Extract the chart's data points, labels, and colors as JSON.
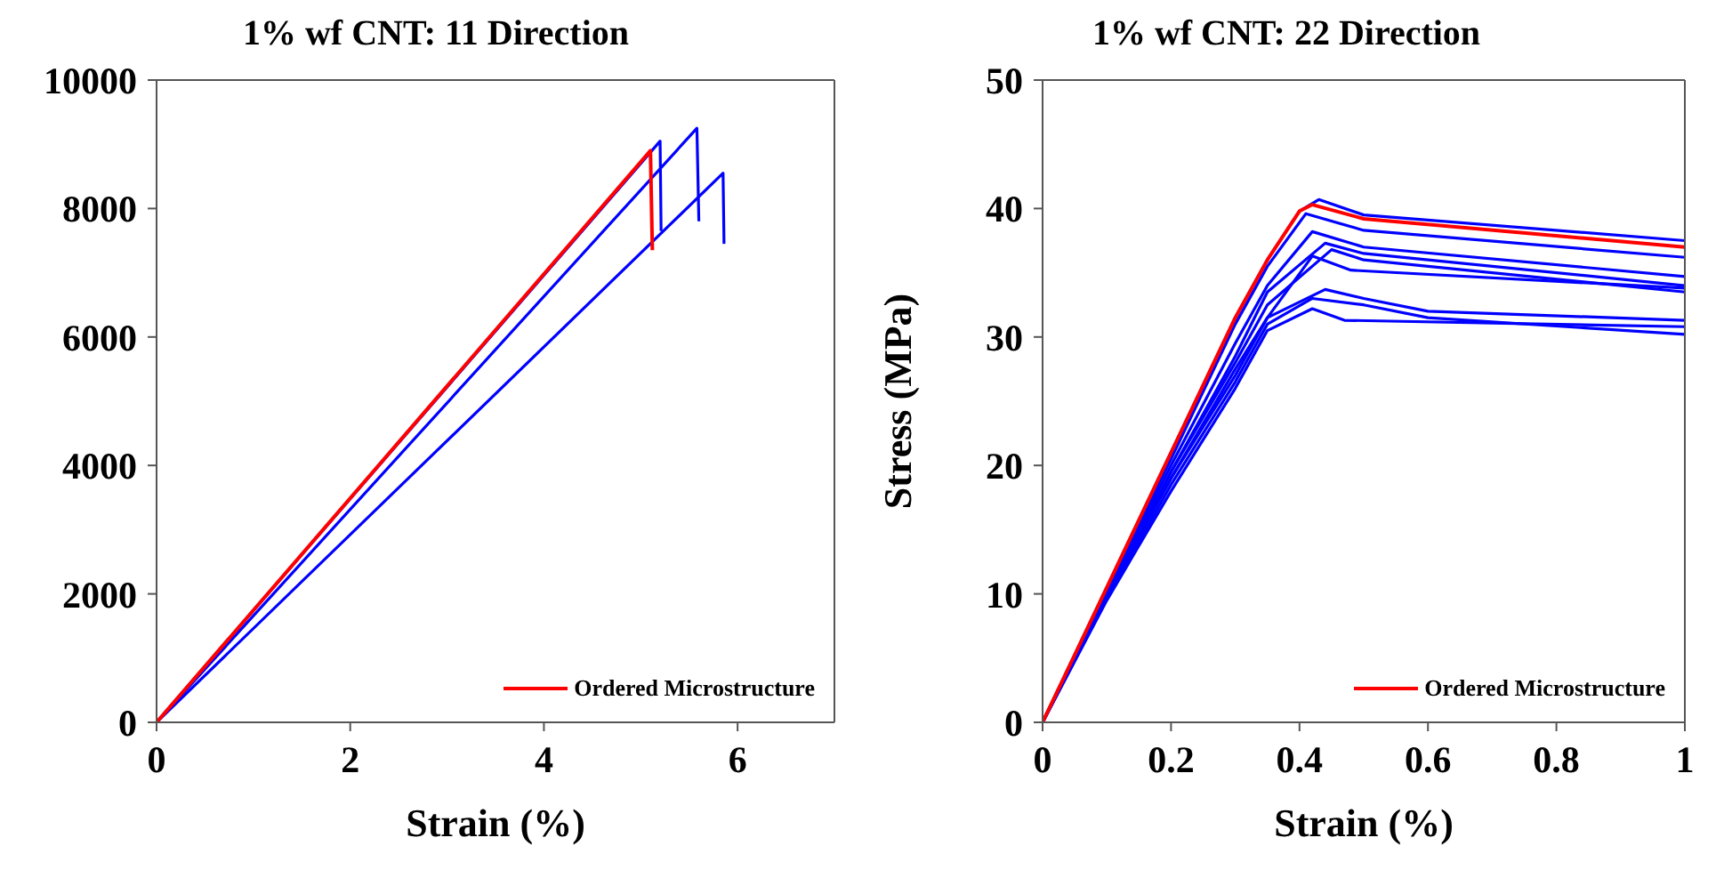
{
  "chart_data": [
    {
      "type": "line",
      "title": "1% wf CNT: 11 Direction",
      "xlabel": "Strain (%)",
      "xlim": [
        0,
        7
      ],
      "xticks": [
        0,
        2,
        4,
        6
      ],
      "ylim": [
        0,
        10000
      ],
      "yticks": [
        0,
        2000,
        4000,
        6000,
        8000,
        10000
      ],
      "grid": false,
      "legend": "bottom right",
      "marker": "none",
      "line_style": "solid",
      "series": [
        {
          "color": "#0000ff",
          "x": [
            0,
            5.2,
            5.21
          ],
          "values": [
            0,
            9050,
            7650
          ]
        },
        {
          "color": "#0000ff",
          "x": [
            0,
            5.58,
            5.6
          ],
          "values": [
            0,
            9250,
            7800
          ]
        },
        {
          "color": "#0000ff",
          "x": [
            0,
            5.85,
            5.86
          ],
          "values": [
            0,
            8550,
            7450
          ]
        },
        {
          "name": "Ordered Microstructure",
          "color": "#ff0000",
          "x": [
            0,
            5.1,
            5.12
          ],
          "values": [
            0,
            8900,
            7350
          ]
        }
      ]
    },
    {
      "type": "line",
      "title": "1% wf CNT: 22 Direction",
      "xlabel": "Strain (%)",
      "ylabel": "Stress (MPa)",
      "xlim": [
        0,
        1
      ],
      "xticks": [
        0,
        0.2,
        0.4,
        0.6,
        0.8,
        1
      ],
      "ylim": [
        0,
        50
      ],
      "yticks": [
        0,
        10,
        20,
        30,
        40,
        50
      ],
      "grid": false,
      "legend": "bottom right",
      "marker": "none",
      "line_style": "solid",
      "series": [
        {
          "color": "#0000ff",
          "x": [
            0,
            0.1,
            0.2,
            0.3,
            0.35,
            0.4,
            0.43,
            0.5,
            1
          ],
          "values": [
            0,
            10.5,
            21,
            31.5,
            36,
            39.8,
            40.7,
            39.5,
            37.5
          ]
        },
        {
          "color": "#0000ff",
          "x": [
            0,
            0.1,
            0.2,
            0.3,
            0.35,
            0.41,
            0.5,
            1
          ],
          "values": [
            0,
            10.3,
            20.5,
            31,
            35.5,
            39.6,
            38.3,
            36.2
          ]
        },
        {
          "color": "#0000ff",
          "x": [
            0,
            0.1,
            0.2,
            0.3,
            0.35,
            0.42,
            0.5,
            1
          ],
          "values": [
            0,
            10.2,
            20,
            29.5,
            34,
            38.2,
            37,
            34.7
          ]
        },
        {
          "color": "#0000ff",
          "x": [
            0,
            0.1,
            0.2,
            0.3,
            0.35,
            0.44,
            0.5,
            1
          ],
          "values": [
            0,
            10,
            19.5,
            28.5,
            33.5,
            37.3,
            36.5,
            34
          ]
        },
        {
          "color": "#0000ff",
          "x": [
            0,
            0.1,
            0.2,
            0.3,
            0.35,
            0.45,
            0.5,
            1
          ],
          "values": [
            0,
            10,
            19.5,
            28,
            32.5,
            36.8,
            36,
            33.5
          ]
        },
        {
          "color": "#0000ff",
          "x": [
            0,
            0.1,
            0.2,
            0.3,
            0.35,
            0.42,
            0.48,
            1
          ],
          "values": [
            0,
            9.9,
            19,
            27,
            31.5,
            36.3,
            35.2,
            33.8
          ]
        },
        {
          "color": "#0000ff",
          "x": [
            0,
            0.1,
            0.2,
            0.3,
            0.35,
            0.44,
            0.5,
            0.6,
            1
          ],
          "values": [
            0,
            9.8,
            19,
            27.5,
            31.5,
            33.7,
            33,
            32,
            31.3
          ]
        },
        {
          "color": "#0000ff",
          "x": [
            0,
            0.1,
            0.2,
            0.3,
            0.35,
            0.42,
            0.5,
            0.6,
            1
          ],
          "values": [
            0,
            9.6,
            18.5,
            26.5,
            31,
            33,
            32.5,
            31.5,
            30.2
          ]
        },
        {
          "color": "#0000ff",
          "x": [
            0,
            0.1,
            0.2,
            0.3,
            0.35,
            0.42,
            0.47,
            1
          ],
          "values": [
            0,
            9.5,
            18,
            26,
            30.5,
            32.2,
            31.3,
            30.8
          ]
        },
        {
          "name": "Ordered Microstructure",
          "color": "#ff0000",
          "x": [
            0,
            0.1,
            0.2,
            0.3,
            0.35,
            0.4,
            0.42,
            0.5,
            1
          ],
          "values": [
            0,
            10.5,
            21,
            31.5,
            36,
            39.8,
            40.3,
            39.2,
            37
          ]
        }
      ]
    }
  ]
}
